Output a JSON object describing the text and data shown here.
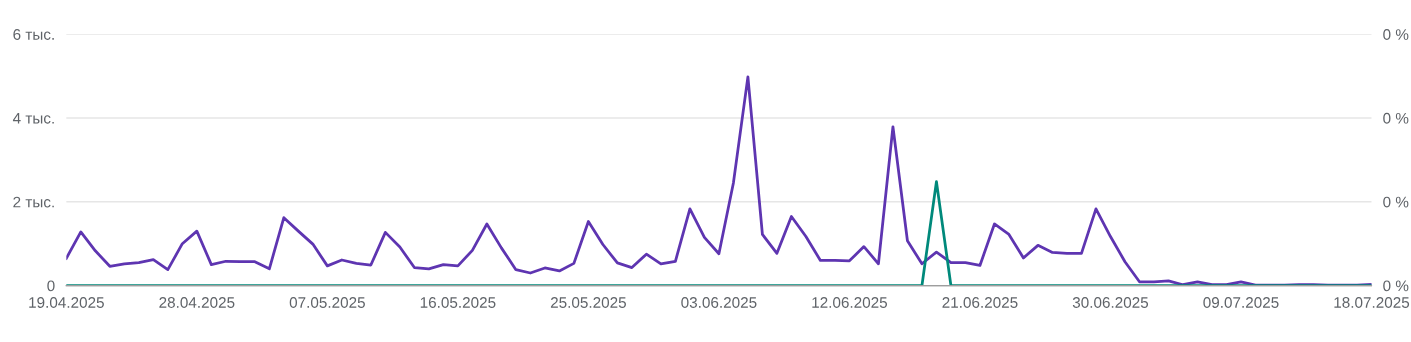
{
  "chart_data": {
    "type": "line",
    "x": [
      "2025-04-19",
      "2025-04-20",
      "2025-04-21",
      "2025-04-22",
      "2025-04-23",
      "2025-04-24",
      "2025-04-25",
      "2025-04-26",
      "2025-04-27",
      "2025-04-28",
      "2025-04-29",
      "2025-04-30",
      "2025-05-01",
      "2025-05-02",
      "2025-05-03",
      "2025-05-04",
      "2025-05-05",
      "2025-05-06",
      "2025-05-07",
      "2025-05-08",
      "2025-05-09",
      "2025-05-10",
      "2025-05-11",
      "2025-05-12",
      "2025-05-13",
      "2025-05-14",
      "2025-05-15",
      "2025-05-16",
      "2025-05-17",
      "2025-05-18",
      "2025-05-19",
      "2025-05-20",
      "2025-05-21",
      "2025-05-22",
      "2025-05-23",
      "2025-05-24",
      "2025-05-25",
      "2025-05-26",
      "2025-05-27",
      "2025-05-28",
      "2025-05-29",
      "2025-05-30",
      "2025-05-31",
      "2025-06-01",
      "2025-06-02",
      "2025-06-03",
      "2025-06-04",
      "2025-06-05",
      "2025-06-06",
      "2025-06-07",
      "2025-06-08",
      "2025-06-09",
      "2025-06-10",
      "2025-06-11",
      "2025-06-12",
      "2025-06-13",
      "2025-06-14",
      "2025-06-15",
      "2025-06-16",
      "2025-06-17",
      "2025-06-18",
      "2025-06-19",
      "2025-06-20",
      "2025-06-21",
      "2025-06-22",
      "2025-06-23",
      "2025-06-24",
      "2025-06-25",
      "2025-06-26",
      "2025-06-27",
      "2025-06-28",
      "2025-06-29",
      "2025-06-30",
      "2025-07-01",
      "2025-07-02",
      "2025-07-03",
      "2025-07-04",
      "2025-07-05",
      "2025-07-06",
      "2025-07-07",
      "2025-07-08",
      "2025-07-09",
      "2025-07-10",
      "2025-07-11",
      "2025-07-12",
      "2025-07-13",
      "2025-07-14",
      "2025-07-15",
      "2025-07-16",
      "2025-07-17",
      "2025-07-18"
    ],
    "series": [
      {
        "color": "#5e35b1",
        "values": [
          0.65,
          1.28,
          0.83,
          0.46,
          0.52,
          0.55,
          0.62,
          0.38,
          1.0,
          1.3,
          0.5,
          0.58,
          0.57,
          0.57,
          0.4,
          1.62,
          1.3,
          0.99,
          0.47,
          0.61,
          0.53,
          0.49,
          1.27,
          0.92,
          0.43,
          0.4,
          0.5,
          0.47,
          0.84,
          1.47,
          0.9,
          0.38,
          0.3,
          0.42,
          0.35,
          0.53,
          1.53,
          0.98,
          0.54,
          0.43,
          0.75,
          0.52,
          0.58,
          1.83,
          1.15,
          0.76,
          2.45,
          4.98,
          1.22,
          0.77,
          1.65,
          1.17,
          0.6,
          0.6,
          0.59,
          0.93,
          0.52,
          3.79,
          1.07,
          0.52,
          0.8,
          0.55,
          0.55,
          0.48,
          1.47,
          1.22,
          0.66,
          0.96,
          0.79,
          0.77,
          0.77,
          1.83,
          1.17,
          0.57,
          0.09,
          0.09,
          0.11,
          0.02,
          0.09,
          0.02,
          0.02,
          0.09,
          0.01,
          0.01,
          0.01,
          0.02,
          0.02,
          0.01,
          0.01,
          0.01,
          0.03
        ]
      },
      {
        "color": "#00897b",
        "values": [
          0,
          0,
          0,
          0,
          0,
          0,
          0,
          0,
          0,
          0,
          0,
          0,
          0,
          0,
          0,
          0,
          0,
          0,
          0,
          0,
          0,
          0,
          0,
          0,
          0,
          0,
          0,
          0,
          0,
          0,
          0,
          0,
          0,
          0,
          0,
          0,
          0,
          0,
          0,
          0,
          0,
          0,
          0,
          0,
          0,
          0,
          0,
          0,
          0,
          0,
          0,
          0,
          0,
          0,
          0,
          0,
          0,
          0,
          0,
          0,
          2.48,
          0,
          0,
          0,
          0,
          0,
          0,
          0,
          0,
          0,
          0,
          0,
          0,
          0,
          0,
          0,
          0,
          0,
          0,
          0,
          0,
          0,
          0,
          0,
          0,
          0,
          0,
          0,
          0,
          0,
          0
        ]
      }
    ],
    "xlim": [
      "2025-04-19",
      "2025-07-18"
    ],
    "xticks": [
      {
        "value": "2025-04-19",
        "label": "19.04.2025"
      },
      {
        "value": "2025-04-28",
        "label": "28.04.2025"
      },
      {
        "value": "2025-05-07",
        "label": "07.05.2025"
      },
      {
        "value": "2025-05-16",
        "label": "16.05.2025"
      },
      {
        "value": "2025-05-25",
        "label": "25.05.2025"
      },
      {
        "value": "2025-06-03",
        "label": "03.06.2025"
      },
      {
        "value": "2025-06-12",
        "label": "12.06.2025"
      },
      {
        "value": "2025-06-21",
        "label": "21.06.2025"
      },
      {
        "value": "2025-06-30",
        "label": "30.06.2025"
      },
      {
        "value": "2025-07-09",
        "label": "09.07.2025"
      },
      {
        "value": "2025-07-18",
        "label": "18.07.2025"
      }
    ],
    "ylim": [
      0,
      6
    ],
    "yticks": [
      0,
      {
        "value": 2,
        "label": "2 тыс."
      },
      {
        "value": 4,
        "label": "4 тыс."
      },
      {
        "value": 6,
        "label": "6 тыс."
      }
    ],
    "y2lim": [
      0,
      0.48
    ],
    "y2ticks": [
      {
        "value": 0,
        "label": "0 %"
      },
      {
        "value": 0.16,
        "label": "0 %"
      },
      {
        "value": 0.32,
        "label": "0 %"
      },
      {
        "value": 0.48,
        "label": "0 %"
      }
    ],
    "grid": "y",
    "marker": "none",
    "line_style": "solid"
  }
}
